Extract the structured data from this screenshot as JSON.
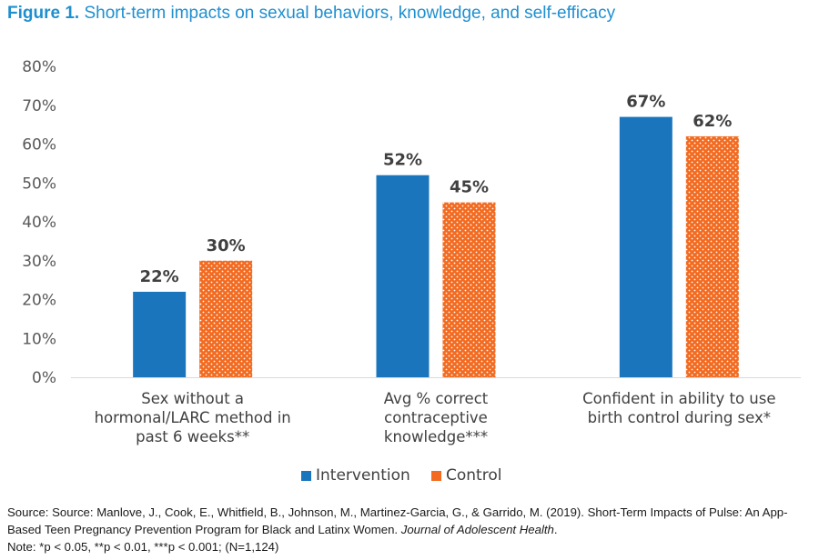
{
  "figure": {
    "number": "Figure 1.",
    "title": "Short-term impacts on sexual behaviors, knowledge, and self-efficacy"
  },
  "chart_data": {
    "type": "bar",
    "categories": [
      [
        "Sex without a",
        "hormonal/LARC method in",
        "past 6 weeks**"
      ],
      [
        "Avg % correct",
        "contraceptive",
        "knowledge***"
      ],
      [
        "Confident in ability to use",
        "birth control during sex*"
      ]
    ],
    "series": [
      {
        "name": "Intervention",
        "values": [
          22,
          52,
          67
        ],
        "labels": [
          "22%",
          "52%",
          "67%"
        ],
        "color": "#1b75bc",
        "pattern": "solid"
      },
      {
        "name": "Control",
        "values": [
          30,
          45,
          62
        ],
        "labels": [
          "30%",
          "45%",
          "62%"
        ],
        "color": "#f26b21",
        "pattern": "dotted"
      }
    ],
    "ylim": [
      0,
      80
    ],
    "yticks": [
      "0%",
      "10%",
      "20%",
      "30%",
      "40%",
      "50%",
      "60%",
      "70%",
      "80%"
    ],
    "grid": false,
    "legend_position": "bottom"
  },
  "source": {
    "prefix": "Source: Source: Manlove, J., Cook, E., Whitfield, B., Johnson, M., Martinez-Garcia, G., & Garrido, M. (2019). Short-Term Impacts of Pulse: An App-Based Teen Pregnancy Prevention Program for Black and Latinx Women.",
    "journal": "Journal of Adolescent Health",
    "suffix": ".",
    "note": "Note: *p < 0.05, **p < 0.01, ***p < 0.001; (N=1,124)"
  }
}
